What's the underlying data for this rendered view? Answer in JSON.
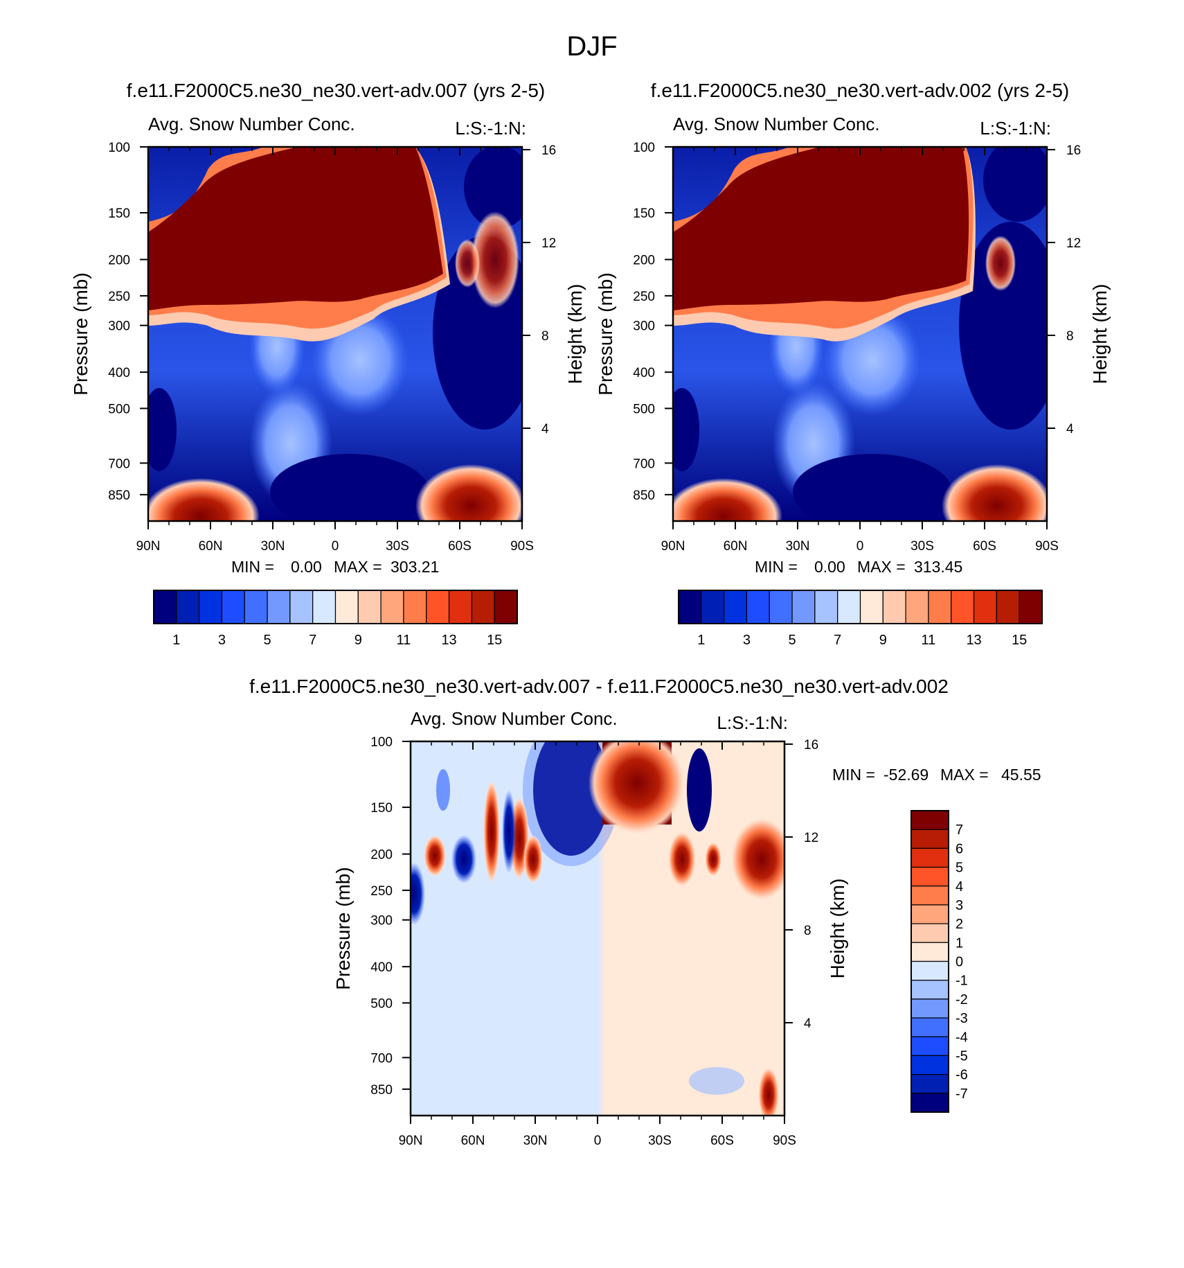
{
  "figure_title": "DJF",
  "chart_data": [
    {
      "type": "heatmap",
      "id": "panel1",
      "case_title": "f.e11.F2000C5.ne30_ne30.vert-adv.007 (yrs 2-5)",
      "left_title": "Avg. Snow Number Conc.",
      "right_title": "L:S:-1:N:",
      "ylabel": "Pressure (mb)",
      "ylabel_right": "Height (km)",
      "x_ticks": [
        "90N",
        "60N",
        "30N",
        "0",
        "30S",
        "60S",
        "90S"
      ],
      "y_ticks": [
        "100",
        "150",
        "200",
        "250",
        "300",
        "400",
        "500",
        "700",
        "850"
      ],
      "y_right_ticks": [
        "16",
        "12",
        "8",
        "4"
      ],
      "stats": {
        "min_label": "MIN =",
        "min": "0.00",
        "max_label": "MAX =",
        "max": "303.21"
      },
      "colorbar": {
        "orientation": "horizontal",
        "labels": [
          "1",
          "3",
          "5",
          "7",
          "9",
          "11",
          "13",
          "15"
        ],
        "colors": [
          "#00007f",
          "#0020b4",
          "#0032e0",
          "#1d4dff",
          "#4170ff",
          "#7399ff",
          "#a6c2ff",
          "#d8e8ff",
          "#ffe9d8",
          "#ffcbb0",
          "#ffa67c",
          "#ff7d4b",
          "#ff5427",
          "#e03010",
          "#b71d05",
          "#7f0000"
        ]
      },
      "cross_section": {
        "upper_red": {
          "lat_from": 90,
          "lat_to": -60,
          "top_mb": 100,
          "base_mb": 250
        },
        "lower_maxima": [
          {
            "lat": 60,
            "mb": 880
          },
          {
            "lat": -70,
            "mb": 880
          }
        ],
        "background": "blue"
      }
    },
    {
      "type": "heatmap",
      "id": "panel2",
      "case_title": "f.e11.F2000C5.ne30_ne30.vert-adv.002 (yrs 2-5)",
      "left_title": "Avg. Snow Number Conc.",
      "right_title": "L:S:-1:N:",
      "ylabel": "Pressure (mb)",
      "ylabel_right": "Height (km)",
      "x_ticks": [
        "90N",
        "60N",
        "30N",
        "0",
        "30S",
        "60S",
        "90S"
      ],
      "y_ticks": [
        "100",
        "150",
        "200",
        "250",
        "300",
        "400",
        "500",
        "700",
        "850"
      ],
      "y_right_ticks": [
        "16",
        "12",
        "8",
        "4"
      ],
      "stats": {
        "min_label": "MIN =",
        "min": "0.00",
        "max_label": "MAX =",
        "max": "313.45"
      },
      "colorbar": {
        "orientation": "horizontal",
        "labels": [
          "1",
          "3",
          "5",
          "7",
          "9",
          "11",
          "13",
          "15"
        ],
        "colors": [
          "#00007f",
          "#0020b4",
          "#0032e0",
          "#1d4dff",
          "#4170ff",
          "#7399ff",
          "#a6c2ff",
          "#d8e8ff",
          "#ffe9d8",
          "#ffcbb0",
          "#ffa67c",
          "#ff7d4b",
          "#ff5427",
          "#e03010",
          "#b71d05",
          "#7f0000"
        ]
      },
      "cross_section": {
        "upper_red": {
          "lat_from": 90,
          "lat_to": -55,
          "top_mb": 100,
          "base_mb": 250
        },
        "lower_maxima": [
          {
            "lat": 60,
            "mb": 880
          },
          {
            "lat": -70,
            "mb": 880
          }
        ],
        "background": "blue"
      }
    },
    {
      "type": "heatmap",
      "id": "diff",
      "case_title": "f.e11.F2000C5.ne30_ne30.vert-adv.007 - f.e11.F2000C5.ne30_ne30.vert-adv.002",
      "left_title": "Avg. Snow Number Conc.",
      "right_title": "L:S:-1:N:",
      "ylabel": "Pressure (mb)",
      "ylabel_right": "Height (km)",
      "x_ticks": [
        "90N",
        "60N",
        "30N",
        "0",
        "30S",
        "60S",
        "90S"
      ],
      "y_ticks": [
        "100",
        "150",
        "200",
        "250",
        "300",
        "400",
        "500",
        "700",
        "850"
      ],
      "y_right_ticks": [
        "16",
        "12",
        "8",
        "4"
      ],
      "stats": {
        "min_label": "MIN =",
        "min": "-52.69",
        "max_label": "MAX =",
        "max": "45.55"
      },
      "colorbar": {
        "orientation": "vertical",
        "labels": [
          "7",
          "6",
          "5",
          "4",
          "3",
          "2",
          "1",
          "0",
          "-1",
          "-2",
          "-3",
          "-4",
          "-5",
          "-6",
          "-7"
        ],
        "colors": [
          "#7f0000",
          "#b71d05",
          "#e03010",
          "#ff5427",
          "#ff7d4b",
          "#ffa67c",
          "#ffcbb0",
          "#ffe9d8",
          "#d8e8ff",
          "#a6c2ff",
          "#7399ff",
          "#4170ff",
          "#1d4dff",
          "#0032e0",
          "#0020b4",
          "#00007f"
        ]
      },
      "cross_section": {
        "negative_blob": {
          "lat_from": 20,
          "lat_to": 0,
          "top_mb": 100,
          "base_mb": 190
        },
        "positive_blob": {
          "lat_from": -5,
          "lat_to": -40,
          "top_mb": 100,
          "base_mb": 190
        },
        "background_nh": "light blue",
        "background_sh": "light peach"
      }
    }
  ]
}
